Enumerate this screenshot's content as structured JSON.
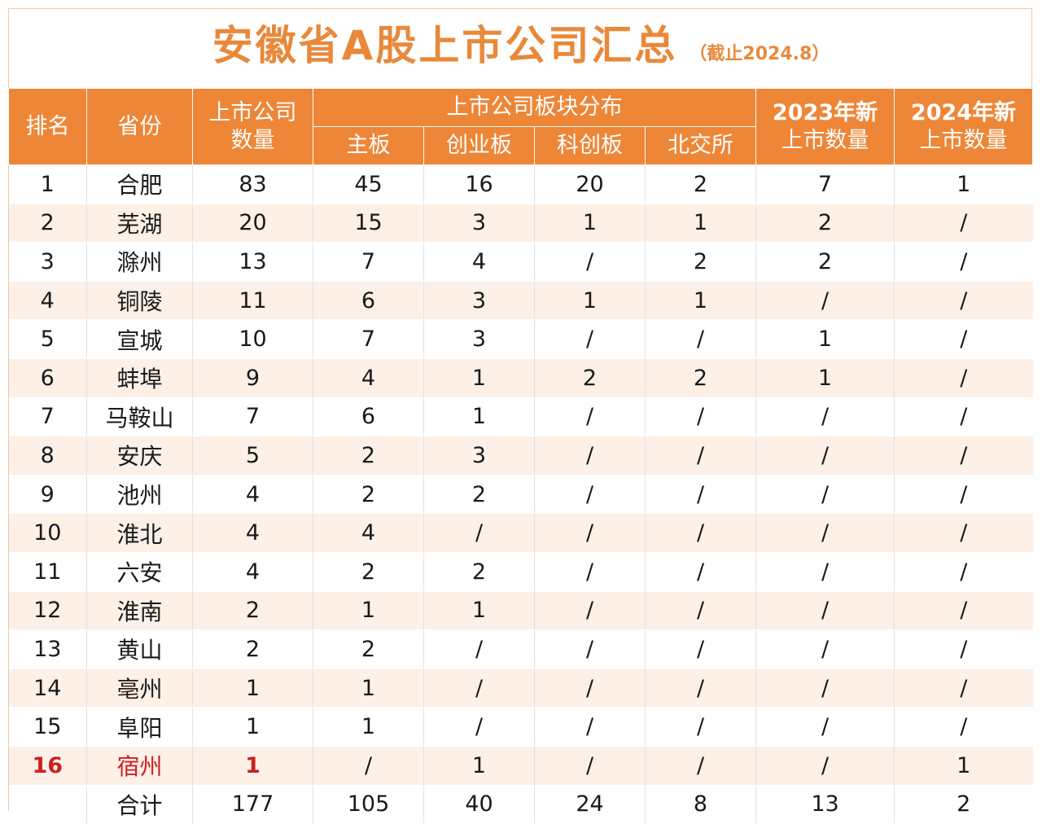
{
  "title": {
    "main": "安徽省A股上市公司汇总",
    "note": "（截止2024.8）"
  },
  "headers": {
    "rank": "排名",
    "province": "省份",
    "count": "上市公司数量",
    "count_line1": "上市公司",
    "count_line2": "数量",
    "board_group": "上市公司板块分布",
    "boards": [
      "主板",
      "创业板",
      "科创板",
      "北交所"
    ],
    "new2023_line1": "2023年新",
    "new2023_line2": "上市数量",
    "new2024_line1": "2024年新",
    "new2024_line2": "上市数量"
  },
  "rows": [
    {
      "rank": "1",
      "name": "合肥",
      "count": "83",
      "main": "45",
      "chinext": "16",
      "star": "20",
      "bse": "2",
      "y2023": "7",
      "y2024": "1"
    },
    {
      "rank": "2",
      "name": "芜湖",
      "count": "20",
      "main": "15",
      "chinext": "3",
      "star": "1",
      "bse": "1",
      "y2023": "2",
      "y2024": "/"
    },
    {
      "rank": "3",
      "name": "滁州",
      "count": "13",
      "main": "7",
      "chinext": "4",
      "star": "/",
      "bse": "2",
      "y2023": "2",
      "y2024": "/"
    },
    {
      "rank": "4",
      "name": "铜陵",
      "count": "11",
      "main": "6",
      "chinext": "3",
      "star": "1",
      "bse": "1",
      "y2023": "/",
      "y2024": "/"
    },
    {
      "rank": "5",
      "name": "宣城",
      "count": "10",
      "main": "7",
      "chinext": "3",
      "star": "/",
      "bse": "/",
      "y2023": "1",
      "y2024": "/"
    },
    {
      "rank": "6",
      "name": "蚌埠",
      "count": "9",
      "main": "4",
      "chinext": "1",
      "star": "2",
      "bse": "2",
      "y2023": "1",
      "y2024": "/"
    },
    {
      "rank": "7",
      "name": "马鞍山",
      "count": "7",
      "main": "6",
      "chinext": "1",
      "star": "/",
      "bse": "/",
      "y2023": "/",
      "y2024": "/"
    },
    {
      "rank": "8",
      "name": "安庆",
      "count": "5",
      "main": "2",
      "chinext": "3",
      "star": "/",
      "bse": "/",
      "y2023": "/",
      "y2024": "/"
    },
    {
      "rank": "9",
      "name": "池州",
      "count": "4",
      "main": "2",
      "chinext": "2",
      "star": "/",
      "bse": "/",
      "y2023": "/",
      "y2024": "/"
    },
    {
      "rank": "10",
      "name": "淮北",
      "count": "4",
      "main": "4",
      "chinext": "/",
      "star": "/",
      "bse": "/",
      "y2023": "/",
      "y2024": "/"
    },
    {
      "rank": "11",
      "name": "六安",
      "count": "4",
      "main": "2",
      "chinext": "2",
      "star": "/",
      "bse": "/",
      "y2023": "/",
      "y2024": "/"
    },
    {
      "rank": "12",
      "name": "淮南",
      "count": "2",
      "main": "1",
      "chinext": "1",
      "star": "/",
      "bse": "/",
      "y2023": "/",
      "y2024": "/"
    },
    {
      "rank": "13",
      "name": "黄山",
      "count": "2",
      "main": "2",
      "chinext": "/",
      "star": "/",
      "bse": "/",
      "y2023": "/",
      "y2024": "/"
    },
    {
      "rank": "14",
      "name": "亳州",
      "count": "1",
      "main": "1",
      "chinext": "/",
      "star": "/",
      "bse": "/",
      "y2023": "/",
      "y2024": "/"
    },
    {
      "rank": "15",
      "name": "阜阳",
      "count": "1",
      "main": "1",
      "chinext": "/",
      "star": "/",
      "bse": "/",
      "y2023": "/",
      "y2024": "/"
    },
    {
      "rank": "16",
      "name": "宿州",
      "count": "1",
      "main": "/",
      "chinext": "1",
      "star": "/",
      "bse": "/",
      "y2023": "/",
      "y2024": "1",
      "highlight": true
    }
  ],
  "total": {
    "rank": "",
    "name": "合计",
    "count": "177",
    "main": "105",
    "chinext": "40",
    "star": "24",
    "bse": "8",
    "y2023": "13",
    "y2024": "2"
  },
  "colors": {
    "accent": "#ee8637",
    "title": "#e8893a",
    "highlight": "#cc1f1f",
    "stripe": "#fdf0e6"
  }
}
